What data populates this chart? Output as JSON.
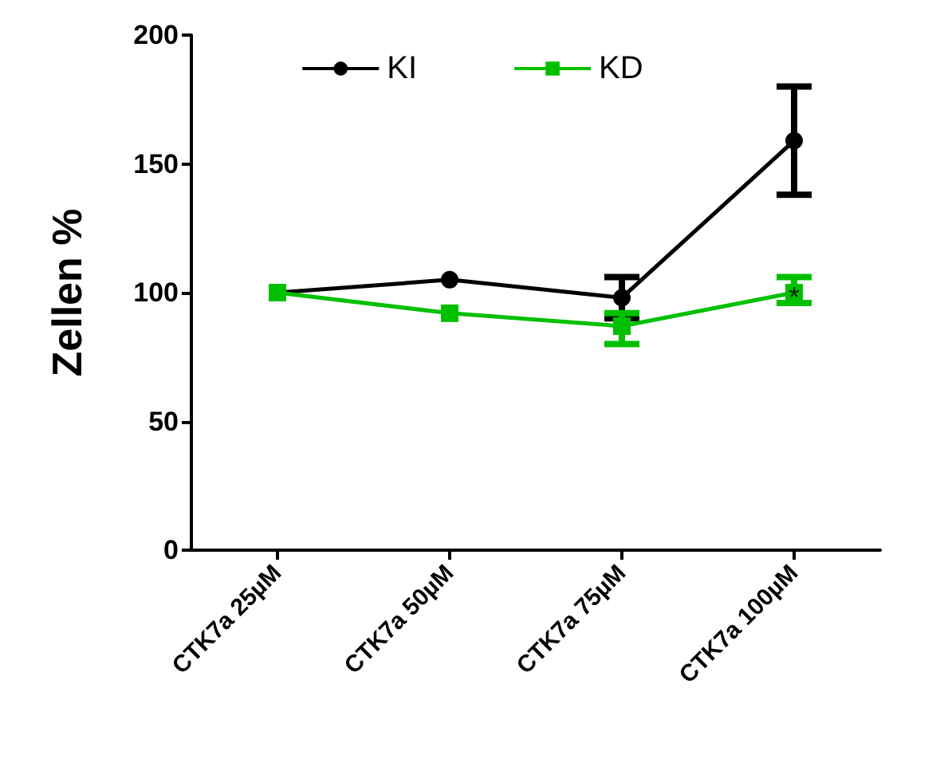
{
  "chart_data": {
    "type": "line",
    "ylabel": "Zellen %",
    "categories": [
      "CTK7a 25µM",
      "CTK7a 50µM",
      "CTK7a 75µM",
      "CTK7a 100µM"
    ],
    "series": [
      {
        "name": "KI",
        "color": "#000000",
        "marker": "circle",
        "values": [
          100,
          105,
          98,
          159
        ],
        "errors": [
          null,
          null,
          [
            90,
            106
          ],
          [
            138,
            180
          ]
        ]
      },
      {
        "name": "KD",
        "color": "#00c000",
        "marker": "square",
        "values": [
          100,
          92,
          87,
          100
        ],
        "errors": [
          null,
          null,
          [
            80,
            92
          ],
          [
            96,
            106
          ]
        ]
      }
    ],
    "ylim": [
      0,
      200
    ],
    "yticks": [
      0,
      50,
      100,
      150,
      200
    ],
    "grid": false,
    "legend": "top",
    "line_style": "solid",
    "annotations": [
      {
        "text": "*",
        "x": "CTK7a 100µM",
        "y": 100
      }
    ]
  }
}
